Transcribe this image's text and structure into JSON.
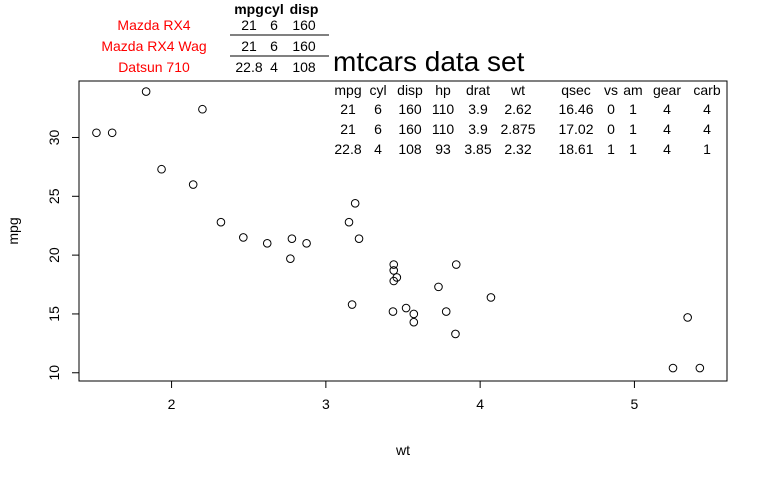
{
  "chart_data": {
    "type": "scatter",
    "title": "mtcars data set",
    "xlabel": "wt",
    "ylabel": "mpg",
    "xlim": [
      1.4,
      5.6
    ],
    "ylim": [
      9.3,
      34.8
    ],
    "x_ticks": [
      2,
      3,
      4,
      5
    ],
    "y_ticks": [
      10,
      15,
      20,
      25,
      30
    ],
    "grid": false,
    "points": [
      {
        "x": 2.62,
        "y": 21.0
      },
      {
        "x": 2.875,
        "y": 21.0
      },
      {
        "x": 2.32,
        "y": 22.8
      },
      {
        "x": 3.215,
        "y": 21.4
      },
      {
        "x": 3.44,
        "y": 18.7
      },
      {
        "x": 3.46,
        "y": 18.1
      },
      {
        "x": 3.57,
        "y": 14.3
      },
      {
        "x": 3.19,
        "y": 24.4
      },
      {
        "x": 3.15,
        "y": 22.8
      },
      {
        "x": 3.44,
        "y": 19.2
      },
      {
        "x": 3.44,
        "y": 17.8
      },
      {
        "x": 4.07,
        "y": 16.4
      },
      {
        "x": 3.73,
        "y": 17.3
      },
      {
        "x": 3.78,
        "y": 15.2
      },
      {
        "x": 5.25,
        "y": 10.4
      },
      {
        "x": 5.424,
        "y": 10.4
      },
      {
        "x": 5.345,
        "y": 14.7
      },
      {
        "x": 2.2,
        "y": 32.4
      },
      {
        "x": 1.615,
        "y": 30.4
      },
      {
        "x": 1.835,
        "y": 33.9
      },
      {
        "x": 2.465,
        "y": 21.5
      },
      {
        "x": 3.52,
        "y": 15.5
      },
      {
        "x": 3.435,
        "y": 15.2
      },
      {
        "x": 3.84,
        "y": 13.3
      },
      {
        "x": 3.845,
        "y": 19.2
      },
      {
        "x": 1.935,
        "y": 27.3
      },
      {
        "x": 2.14,
        "y": 26.0
      },
      {
        "x": 1.513,
        "y": 30.4
      },
      {
        "x": 3.17,
        "y": 15.8
      },
      {
        "x": 2.77,
        "y": 19.7
      },
      {
        "x": 3.57,
        "y": 15.0
      },
      {
        "x": 2.78,
        "y": 21.4
      }
    ],
    "small_table": {
      "headers": [
        "mpg",
        "cyl",
        "disp"
      ],
      "row_names": [
        "Mazda RX4",
        "Mazda RX4 Wag",
        "Datsun 710"
      ],
      "rows": [
        [
          "21",
          "6",
          "160"
        ],
        [
          "21",
          "6",
          "160"
        ],
        [
          "22.8",
          "4",
          "108"
        ]
      ]
    },
    "big_table": {
      "headers": [
        "mpg",
        "cyl",
        "disp",
        "hp",
        "drat",
        "wt",
        "qsec",
        "vs",
        "am",
        "gear",
        "carb"
      ],
      "rows": [
        [
          "21",
          "6",
          "160",
          "110",
          "3.9",
          "2.62",
          "16.46",
          "0",
          "1",
          "4",
          "4"
        ],
        [
          "21",
          "6",
          "160",
          "110",
          "3.9",
          "2.875",
          "17.02",
          "0",
          "1",
          "4",
          "4"
        ],
        [
          "22.8",
          "4",
          "108",
          "93",
          "3.85",
          "2.32",
          "18.61",
          "1",
          "1",
          "4",
          "1"
        ]
      ]
    },
    "colors": {
      "row_names": "#ff0000",
      "axes": "#000000",
      "points": "#000000"
    }
  }
}
